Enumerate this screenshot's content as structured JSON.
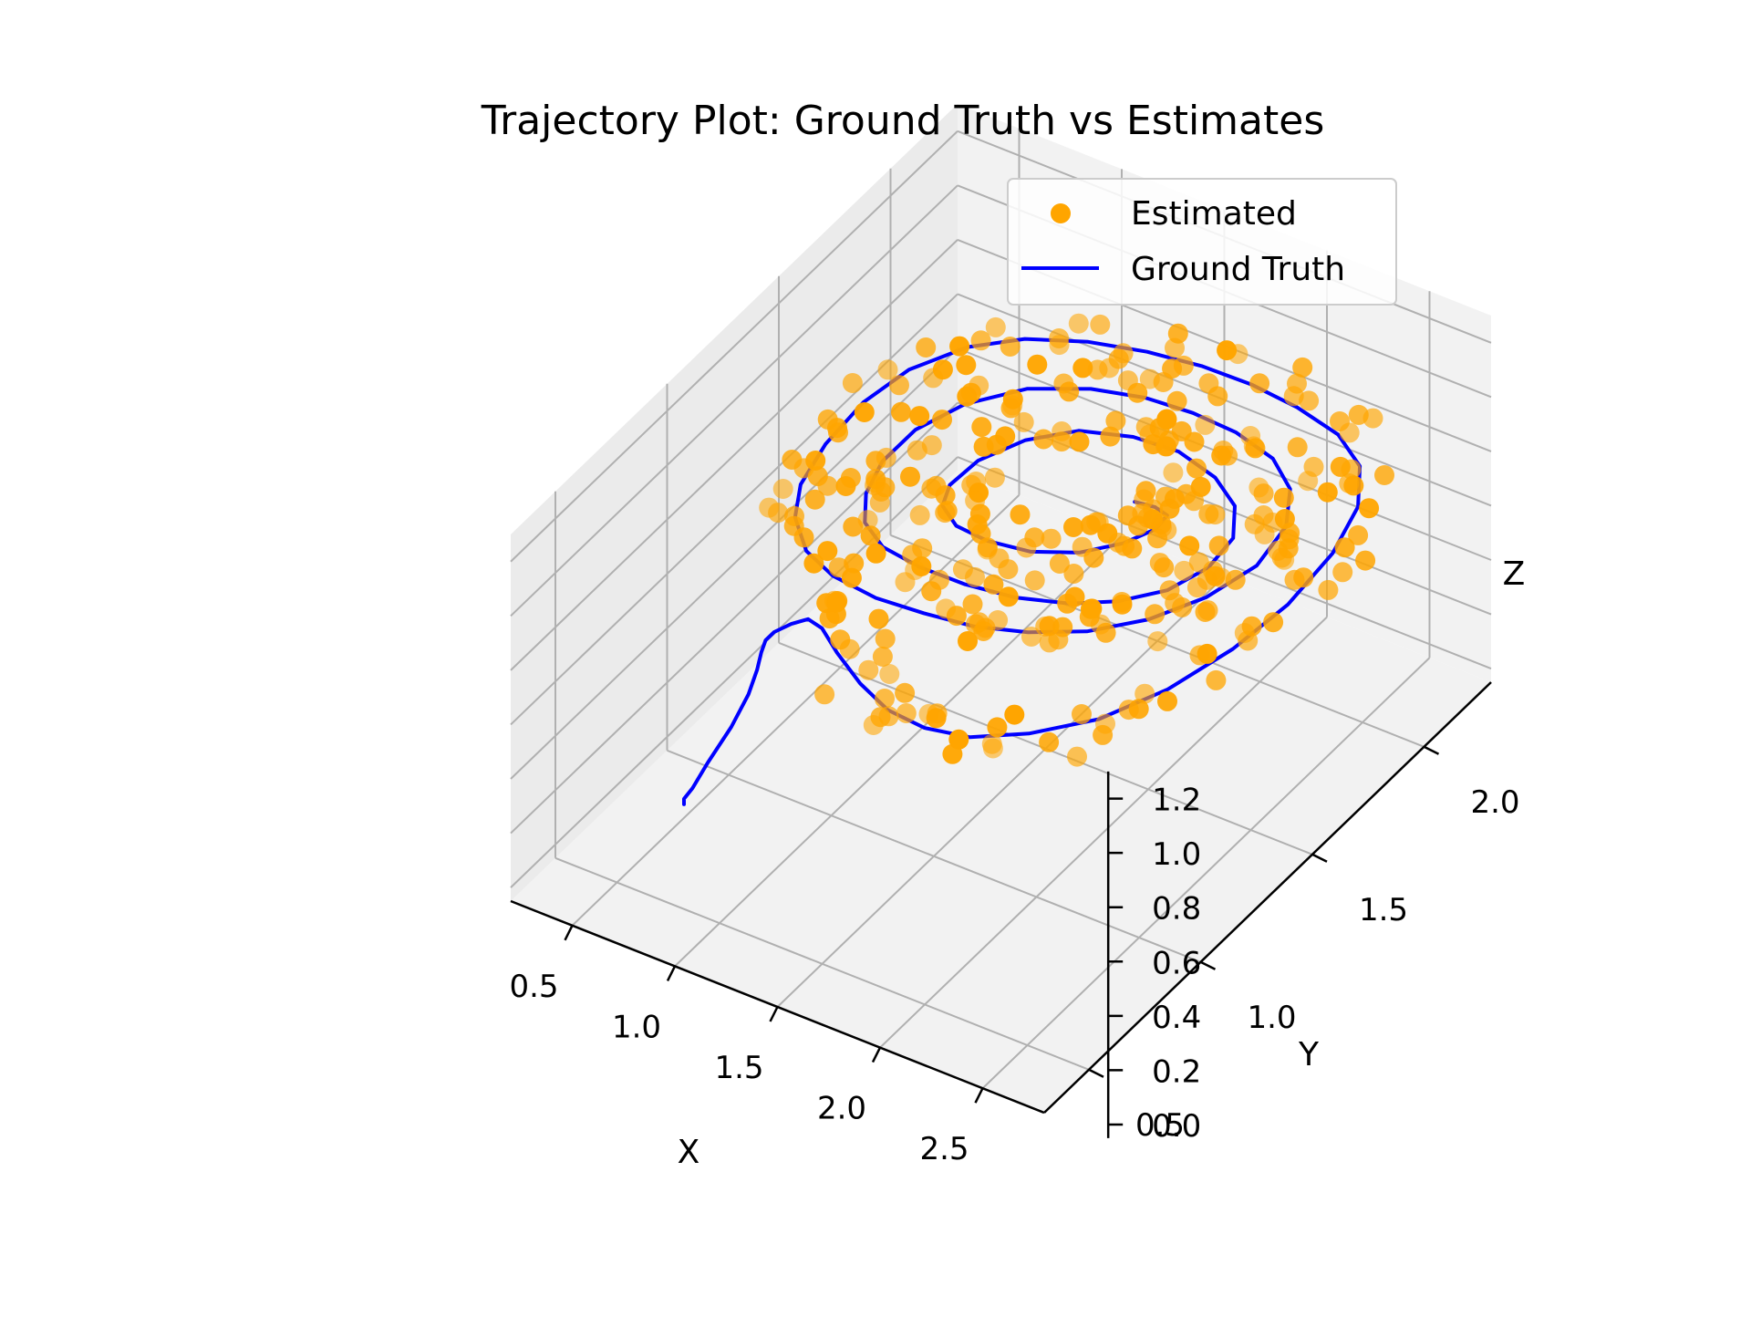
{
  "chart_data": {
    "type": "scatter",
    "title": "Trajectory Plot: Ground Truth vs Estimates",
    "xlabel": "X",
    "ylabel": "Y",
    "zlabel": "Z",
    "xlim": [
      0.2,
      2.8
    ],
    "ylim": [
      0.3,
      2.3
    ],
    "zlim": [
      -0.05,
      1.3
    ],
    "xticks": [
      "0.5",
      "1.0",
      "1.5",
      "2.0",
      "2.5"
    ],
    "yticks": [
      "0.5",
      "1.0",
      "1.5",
      "2.0"
    ],
    "zticks": [
      "0.0",
      "0.2",
      "0.4",
      "0.6",
      "0.8",
      "1.0",
      "1.2"
    ],
    "grid": true,
    "legend": {
      "position": "top-right",
      "entries": [
        {
          "label": "Estimated",
          "kind": "marker",
          "color": "#ffa500"
        },
        {
          "label": "Ground Truth",
          "kind": "line",
          "color": "#0000ff"
        }
      ]
    },
    "series": [
      {
        "name": "Ground Truth",
        "kind": "line",
        "color": "#0000ff",
        "x": [
          0.5,
          0.5,
          0.52,
          0.55,
          0.6,
          0.64,
          0.66,
          0.67,
          0.68,
          0.7,
          0.74,
          0.8,
          0.9,
          1.05,
          1.25,
          1.45,
          1.65,
          1.85,
          2.05,
          2.25,
          2.4,
          2.5,
          2.55,
          2.55,
          2.5,
          2.4,
          2.25,
          2.05,
          1.85,
          1.65,
          1.45,
          1.25,
          1.05,
          0.9,
          0.78,
          0.72,
          0.7,
          0.72,
          0.78,
          0.9,
          1.05,
          1.25,
          1.45,
          1.65,
          1.85,
          2.05,
          2.22,
          2.35,
          2.42,
          2.4,
          2.3,
          2.15,
          1.95,
          1.75,
          1.55,
          1.35,
          1.15,
          1.0,
          0.92,
          0.9,
          0.93,
          1.0,
          1.12,
          1.3,
          1.5,
          1.7,
          1.9,
          2.05,
          2.18,
          2.25,
          2.24,
          2.15,
          2.0,
          1.8,
          1.6,
          1.4,
          1.25,
          1.15,
          1.12,
          1.15,
          1.25,
          1.4,
          1.58,
          1.75,
          1.88,
          1.95,
          1.94,
          1.86,
          1.76
        ],
        "y": [
          0.8,
          0.8,
          0.82,
          0.86,
          0.92,
          0.96,
          0.98,
          0.99,
          1.0,
          1.02,
          1.06,
          1.08,
          1.05,
          0.98,
          0.9,
          0.84,
          0.82,
          0.84,
          0.92,
          1.05,
          1.22,
          1.42,
          1.62,
          1.82,
          1.98,
          2.08,
          2.12,
          2.12,
          2.1,
          2.06,
          2.0,
          1.92,
          1.82,
          1.7,
          1.55,
          1.4,
          1.25,
          1.12,
          1.04,
          0.98,
          0.96,
          0.97,
          1.0,
          1.04,
          1.1,
          1.18,
          1.3,
          1.44,
          1.6,
          1.75,
          1.86,
          1.92,
          1.94,
          1.93,
          1.9,
          1.84,
          1.74,
          1.6,
          1.45,
          1.32,
          1.22,
          1.15,
          1.12,
          1.12,
          1.14,
          1.18,
          1.24,
          1.32,
          1.42,
          1.54,
          1.66,
          1.75,
          1.8,
          1.82,
          1.8,
          1.74,
          1.64,
          1.52,
          1.42,
          1.36,
          1.33,
          1.33,
          1.36,
          1.42,
          1.5,
          1.58,
          1.64,
          1.66,
          1.66
        ],
        "z": [
          0.0,
          0.02,
          0.05,
          0.12,
          0.22,
          0.32,
          0.4,
          0.46,
          0.5,
          0.52,
          0.53,
          0.55,
          0.57,
          0.58,
          0.59,
          0.6,
          0.61,
          0.62,
          0.63,
          0.64,
          0.66,
          0.68,
          0.7,
          0.73,
          0.76,
          0.8,
          0.84,
          0.88,
          0.92,
          0.96,
          1.0,
          1.04,
          1.07,
          1.09,
          1.09,
          1.07,
          1.03,
          0.99,
          0.95,
          0.91,
          0.88,
          0.85,
          0.83,
          0.81,
          0.8,
          0.8,
          0.8,
          0.81,
          0.82,
          0.84,
          0.86,
          0.88,
          0.9,
          0.92,
          0.94,
          0.96,
          0.98,
          0.99,
          0.99,
          0.97,
          0.94,
          0.91,
          0.88,
          0.86,
          0.84,
          0.82,
          0.81,
          0.8,
          0.8,
          0.81,
          0.82,
          0.84,
          0.86,
          0.88,
          0.89,
          0.9,
          0.9,
          0.89,
          0.87,
          0.85,
          0.83,
          0.82,
          0.81,
          0.81,
          0.82,
          0.83,
          0.83,
          0.82,
          0.81
        ]
      },
      {
        "name": "Estimated",
        "kind": "scatter",
        "color": "#ffa500"
      }
    ]
  }
}
